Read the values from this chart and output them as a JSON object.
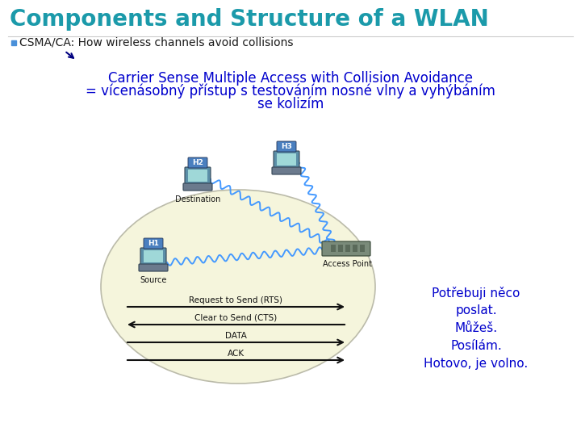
{
  "title": "Components and Structure of a WLAN",
  "title_color": "#1B9AAA",
  "title_fontsize": 20,
  "bullet_color": "#1a1a1a",
  "bullet_text": "CSMA/CA: How wireless channels avoid collisions",
  "bullet_fontsize": 10,
  "main_text_line1": "Carrier Sense Multiple Access with Collision Avoidance",
  "main_text_line2": "= vícenásobný přístup s testováním nosné vlny a vyhýbáním",
  "main_text_line3": "se kolizím",
  "main_text_color": "#0000CD",
  "main_text_fontsize": 12,
  "side_text_line1": "Potřebuji něco",
  "side_text_line2": "poslat.",
  "side_text_line3": "Můžeš.",
  "side_text_line4": "Posílám.",
  "side_text_line5": "Hotovo, je volno.",
  "side_text_color": "#0000CC",
  "side_text_fontsize": 11,
  "background_color": "#FFFFFF",
  "ellipse_color": "#F5F5DC",
  "ellipse_edge": "#BBBBAA",
  "arrow_color": "#111111",
  "rts_label": "Request to Send (RTS)",
  "cts_label": "Clear to Send (CTS)",
  "data_label": "DATA",
  "ack_label": "ACK",
  "h1_label": "H1",
  "h2_label": "H2",
  "h3_label": "H3",
  "source_label": "Source",
  "destination_label": "Destination",
  "ap_label": "Access Point",
  "bullet_square_color": "#4A90D9",
  "wave_color": "#4499FF",
  "laptop_body": "#5B8FA8",
  "laptop_screen": "#7EC8C8",
  "laptop_base": "#6B7A8D",
  "ap_body_color": "#7A8B7A",
  "ap_detail_color": "#5A6A5A"
}
